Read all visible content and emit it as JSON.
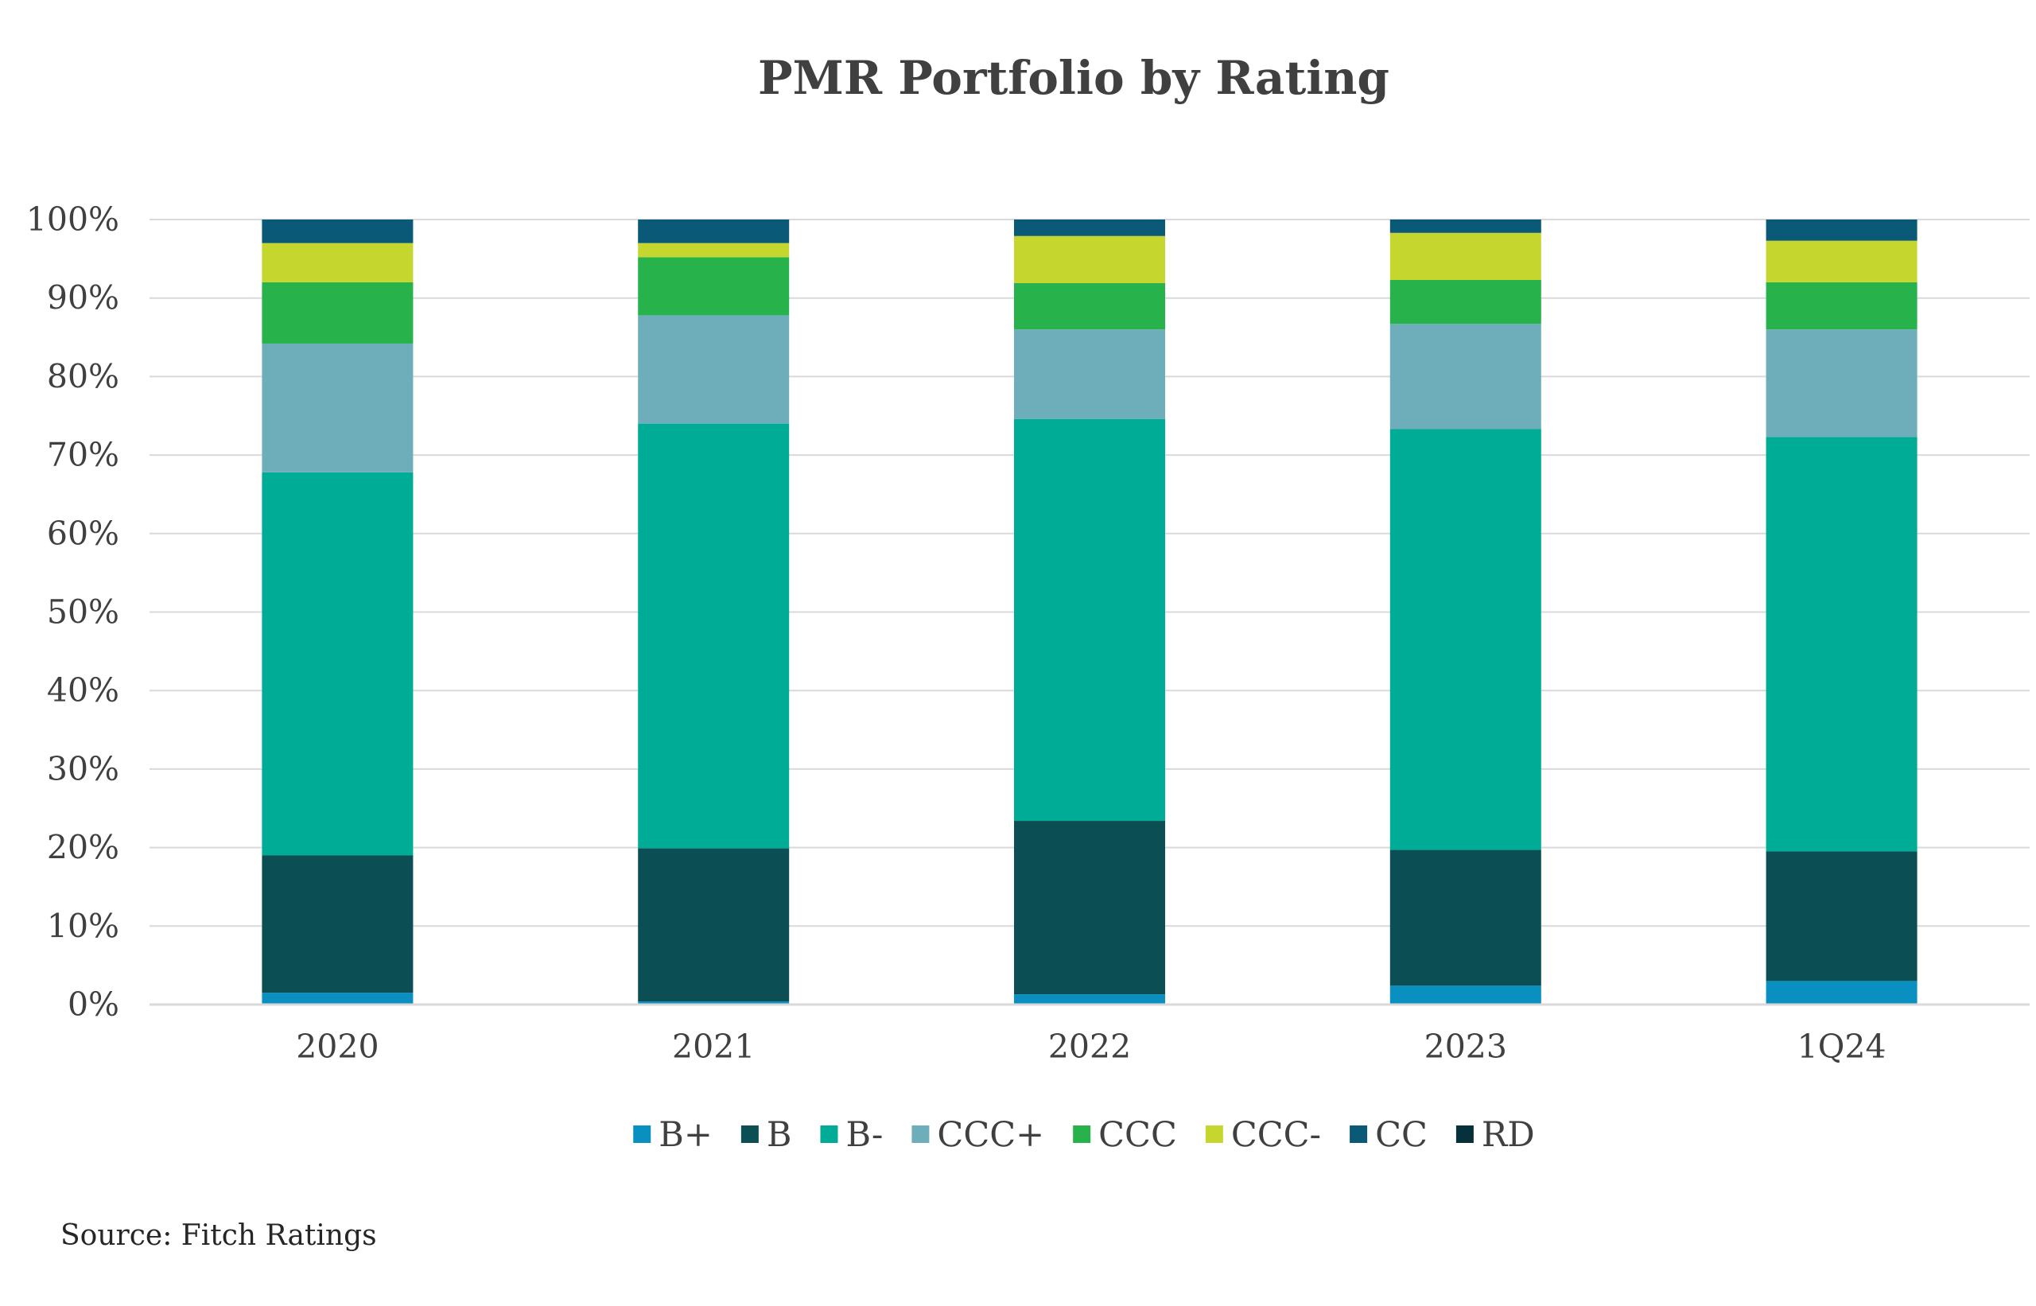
{
  "chart_data": {
    "type": "bar",
    "stacked": true,
    "title": "PMR Portfolio by Rating",
    "categories": [
      "2020",
      "2021",
      "2022",
      "2023",
      "1Q24"
    ],
    "ylim": [
      0,
      100
    ],
    "yticks": [
      "0%",
      "10%",
      "20%",
      "30%",
      "40%",
      "50%",
      "60%",
      "70%",
      "80%",
      "90%",
      "100%"
    ],
    "grid": true,
    "legend_position": "bottom",
    "series": [
      {
        "name": "B+",
        "color": "#0a8fc1",
        "values": [
          1.5,
          0.4,
          1.3,
          2.4,
          3.0
        ]
      },
      {
        "name": "B",
        "color": "#0b4f55",
        "values": [
          17.5,
          19.5,
          22.1,
          17.3,
          16.5
        ]
      },
      {
        "name": "B-",
        "color": "#00ac95",
        "values": [
          48.8,
          54.1,
          51.2,
          53.6,
          52.8
        ]
      },
      {
        "name": "CCC+",
        "color": "#6eaebb",
        "values": [
          16.4,
          13.8,
          11.4,
          13.4,
          13.7
        ]
      },
      {
        "name": "CCC",
        "color": "#27b24b",
        "values": [
          7.8,
          7.4,
          5.9,
          5.6,
          6.0
        ]
      },
      {
        "name": "CCC-",
        "color": "#c5d62e",
        "values": [
          5.0,
          1.8,
          6.0,
          6.0,
          5.3
        ]
      },
      {
        "name": "CC",
        "color": "#0a5a77",
        "values": [
          3.0,
          3.0,
          2.1,
          1.7,
          2.7
        ]
      },
      {
        "name": "RD",
        "color": "#07303a",
        "values": [
          0,
          0,
          0,
          0,
          0
        ]
      }
    ]
  },
  "source": "Source: Fitch Ratings"
}
